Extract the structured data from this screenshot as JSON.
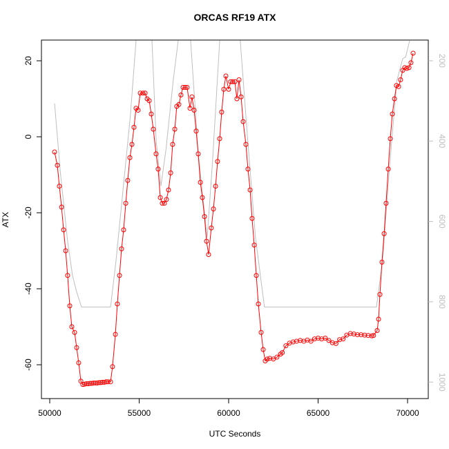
{
  "chart_data": {
    "type": "line",
    "title": "ORCAS RF19 ATX",
    "x_label": "UTC Seconds",
    "y_label": "ATX",
    "xlim": [
      49537,
      71158
    ],
    "xticks": [
      50000,
      55000,
      60000,
      65000,
      70000
    ],
    "ylim": [
      -68.9,
      25.45
    ],
    "yticks": [
      -60,
      -40,
      -20,
      0,
      20
    ],
    "y2lim": [
      1041,
      148.5
    ],
    "y2ticks": [
      200,
      400,
      600,
      800,
      1000
    ],
    "series": [
      {
        "color": "#ff0000",
        "markers": true,
        "x": [
          50270,
          50425,
          50540,
          50660,
          50775,
          50890,
          51000,
          51120,
          51235,
          51390,
          51505,
          51620,
          51740,
          51850,
          51950,
          52050,
          52150,
          52250,
          52350,
          52450,
          52550,
          52650,
          52750,
          52850,
          52950,
          53050,
          53150,
          53250,
          53400,
          53510,
          53670,
          53780,
          53900,
          54015,
          54130,
          54250,
          54360,
          54480,
          54595,
          54710,
          54825,
          54940,
          55060,
          55210,
          55330,
          55445,
          55560,
          55675,
          55790,
          55945,
          56060,
          56180,
          56290,
          56410,
          56525,
          56640,
          56760,
          56870,
          56990,
          57100,
          57220,
          57335,
          57450,
          57570,
          57680,
          57840,
          57950,
          58070,
          58185,
          58300,
          58420,
          58530,
          58650,
          58765,
          58880,
          59030,
          59150,
          59270,
          59380,
          59500,
          59610,
          59730,
          59845,
          60000,
          60115,
          60230,
          60350,
          60460,
          60580,
          60695,
          60810,
          60965,
          61080,
          61200,
          61310,
          61430,
          61545,
          61660,
          61815,
          61930,
          62045,
          62160,
          62300,
          62500,
          62700,
          62900,
          63000,
          63200,
          63400,
          63600,
          63800,
          64000,
          64200,
          64400,
          64600,
          64800,
          65000,
          65200,
          65400,
          65600,
          65800,
          66000,
          66200,
          66400,
          66600,
          66800,
          67000,
          67200,
          67400,
          67600,
          67800,
          68000,
          68100,
          68300,
          68380,
          68455,
          68570,
          68690,
          68800,
          68920,
          69035,
          69150,
          69270,
          69380,
          69500,
          69610,
          69730,
          69845,
          69960,
          70080,
          70190,
          70310
        ],
        "values": [
          -4,
          -7.5,
          -13,
          -18.5,
          -24.5,
          -30,
          -36.5,
          -44.5,
          -50,
          -51.5,
          -55.5,
          -59.5,
          -64.3,
          -65.2,
          -65.1,
          -65,
          -65,
          -64.9,
          -64.9,
          -64.8,
          -64.8,
          -64.8,
          -64.7,
          -64.7,
          -64.6,
          -64.6,
          -64.5,
          -64.5,
          -64.5,
          -60.5,
          -52,
          -44,
          -36.5,
          -29.5,
          -24.5,
          -17.5,
          -11.5,
          -5.5,
          -2,
          2.5,
          7.5,
          7,
          11.5,
          11.5,
          11.5,
          10,
          9.5,
          6,
          2,
          -4.5,
          -8.5,
          -16,
          -17.5,
          -17.5,
          -16.5,
          -14,
          -9.5,
          -2,
          2,
          8,
          8.5,
          11,
          13,
          13,
          13,
          7.5,
          10.5,
          7,
          1.5,
          -4.5,
          -12,
          -16,
          -21,
          -27.5,
          -31,
          -24,
          -19,
          -13,
          -6.5,
          -0.5,
          6.5,
          12.5,
          16,
          12.5,
          14.5,
          14.5,
          14.5,
          10,
          15,
          10.5,
          4,
          -2,
          -8.5,
          -14,
          -21.5,
          -28.5,
          -36.5,
          -44,
          -51.5,
          -56,
          -59,
          -58.5,
          -58.3,
          -58.5,
          -58,
          -57.2,
          -56.8,
          -55,
          -54.3,
          -54,
          -53.8,
          -53.6,
          -53.8,
          -53.5,
          -53.8,
          -53.2,
          -53,
          -53.2,
          -53,
          -53.6,
          -54.2,
          -54.4,
          -53.4,
          -53.2,
          -52.2,
          -51.8,
          -51.9,
          -52.1,
          -52.1,
          -52.2,
          -52.3,
          -52.4,
          -52.3,
          -51,
          -48,
          -41.5,
          -33,
          -25.5,
          -17.5,
          -8.5,
          -0.5,
          6,
          10,
          13.5,
          13.2,
          15,
          17.5,
          18.2,
          18,
          18.2,
          19.5,
          22
        ]
      },
      {
        "color": "#bebebe",
        "axis": "y2",
        "markers": false,
        "x": [
          50270,
          50600,
          51000,
          51275,
          51500,
          51775,
          53400,
          53700,
          54100,
          54500,
          54825,
          55000,
          55450,
          55715,
          55950,
          56215,
          56500,
          56900,
          57180,
          57500,
          57875,
          58300,
          58800,
          59100,
          59500,
          59800,
          60400,
          60650,
          61000,
          61500,
          62000,
          68260,
          68600,
          69000,
          69400,
          69730,
          69900,
          70115
        ],
        "values": [
          306,
          480,
          650,
          735,
          775,
          813,
          813,
          700,
          520,
          340,
          150,
          60,
          60,
          150,
          400,
          512,
          420,
          250,
          150,
          80,
          150,
          430,
          641,
          450,
          150,
          70,
          70,
          150,
          360,
          640,
          813,
          813,
          700,
          460,
          250,
          195,
          190,
          150
        ]
      }
    ]
  }
}
